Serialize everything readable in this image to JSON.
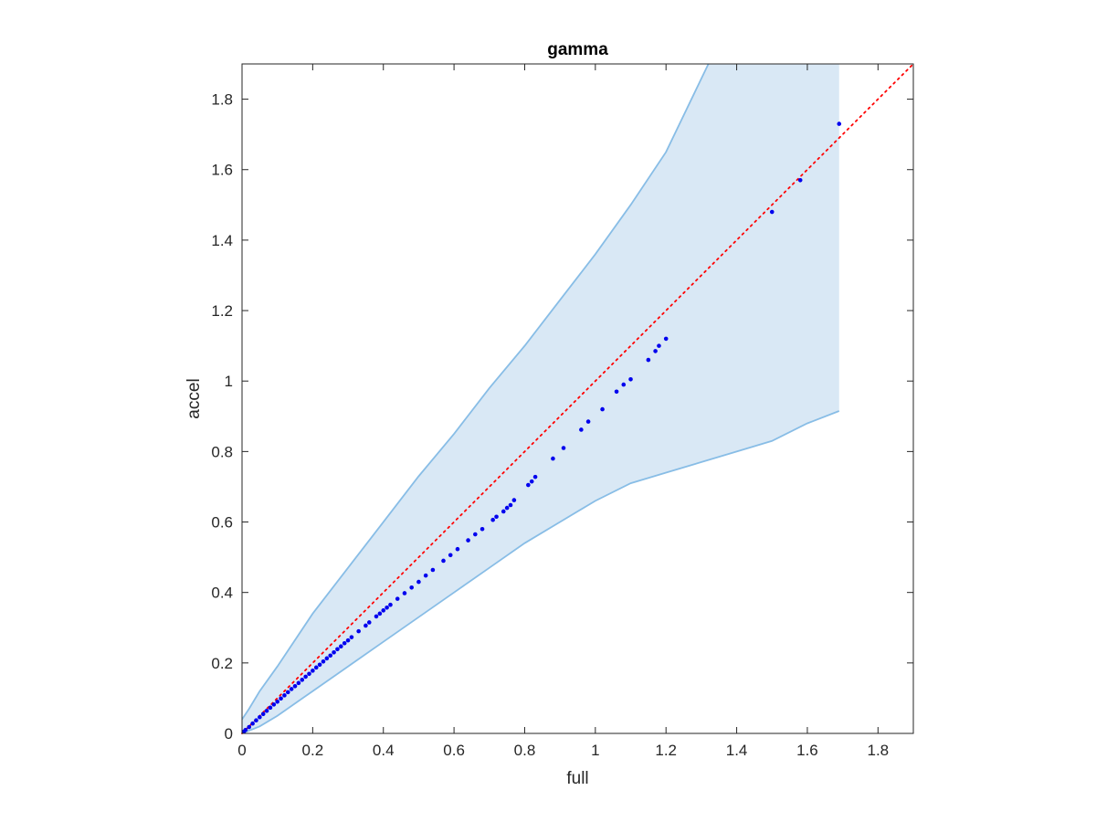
{
  "chart_data": {
    "type": "scatter",
    "title": "gamma",
    "xlabel": "full",
    "ylabel": "accel",
    "xlim": [
      0,
      1.9
    ],
    "ylim": [
      0,
      1.9
    ],
    "xticks": [
      0,
      0.2,
      0.4,
      0.6,
      0.8,
      1,
      1.2,
      1.4,
      1.6,
      1.8
    ],
    "yticks": [
      0,
      0.2,
      0.4,
      0.6,
      0.8,
      1,
      1.2,
      1.4,
      1.6,
      1.8
    ],
    "xtick_labels": [
      "0",
      "0.2",
      "0.4",
      "0.6",
      "0.8",
      "1",
      "1.2",
      "1.4",
      "1.6",
      "1.8"
    ],
    "ytick_labels": [
      "0",
      "0.2",
      "0.4",
      "0.6",
      "0.8",
      "1",
      "1.2",
      "1.4",
      "1.6",
      "1.8"
    ],
    "grid": false,
    "box": true,
    "colors": {
      "band_fill": "#d9e8f5",
      "band_edge": "#88bde6",
      "points": "#0000ee",
      "reference": "#ff0000",
      "axes": "#262626"
    },
    "band": {
      "upper": [
        [
          0,
          0.04
        ],
        [
          0.02,
          0.07
        ],
        [
          0.05,
          0.12
        ],
        [
          0.1,
          0.19
        ],
        [
          0.2,
          0.34
        ],
        [
          0.3,
          0.47
        ],
        [
          0.4,
          0.6
        ],
        [
          0.5,
          0.73
        ],
        [
          0.6,
          0.85
        ],
        [
          0.7,
          0.98
        ],
        [
          0.8,
          1.1
        ],
        [
          0.9,
          1.23
        ],
        [
          1.0,
          1.36
        ],
        [
          1.1,
          1.5
        ],
        [
          1.2,
          1.65
        ],
        [
          1.32,
          1.9
        ],
        [
          1.69,
          1.9
        ]
      ],
      "lower": [
        [
          0,
          0
        ],
        [
          0.05,
          0.02
        ],
        [
          0.1,
          0.05
        ],
        [
          0.2,
          0.12
        ],
        [
          0.3,
          0.19
        ],
        [
          0.4,
          0.26
        ],
        [
          0.5,
          0.33
        ],
        [
          0.6,
          0.4
        ],
        [
          0.7,
          0.47
        ],
        [
          0.8,
          0.54
        ],
        [
          0.9,
          0.6
        ],
        [
          1.0,
          0.66
        ],
        [
          1.1,
          0.71
        ],
        [
          1.2,
          0.74
        ],
        [
          1.4,
          0.8
        ],
        [
          1.5,
          0.83
        ],
        [
          1.6,
          0.88
        ],
        [
          1.69,
          0.915
        ]
      ]
    },
    "reference_line": [
      [
        0,
        0
      ],
      [
        1.9,
        1.9
      ]
    ],
    "points": [
      [
        0.005,
        0.005
      ],
      [
        0.01,
        0.01
      ],
      [
        0.02,
        0.018
      ],
      [
        0.03,
        0.028
      ],
      [
        0.04,
        0.037
      ],
      [
        0.05,
        0.046
      ],
      [
        0.06,
        0.055
      ],
      [
        0.07,
        0.064
      ],
      [
        0.08,
        0.073
      ],
      [
        0.09,
        0.082
      ],
      [
        0.1,
        0.09
      ],
      [
        0.11,
        0.099
      ],
      [
        0.12,
        0.108
      ],
      [
        0.13,
        0.117
      ],
      [
        0.14,
        0.126
      ],
      [
        0.15,
        0.134
      ],
      [
        0.16,
        0.143
      ],
      [
        0.17,
        0.152
      ],
      [
        0.18,
        0.161
      ],
      [
        0.19,
        0.169
      ],
      [
        0.2,
        0.178
      ],
      [
        0.21,
        0.187
      ],
      [
        0.22,
        0.195
      ],
      [
        0.23,
        0.204
      ],
      [
        0.24,
        0.213
      ],
      [
        0.25,
        0.221
      ],
      [
        0.26,
        0.23
      ],
      [
        0.27,
        0.239
      ],
      [
        0.28,
        0.247
      ],
      [
        0.29,
        0.256
      ],
      [
        0.3,
        0.264
      ],
      [
        0.31,
        0.273
      ],
      [
        0.33,
        0.29
      ],
      [
        0.35,
        0.306
      ],
      [
        0.36,
        0.315
      ],
      [
        0.38,
        0.332
      ],
      [
        0.39,
        0.34
      ],
      [
        0.4,
        0.349
      ],
      [
        0.41,
        0.357
      ],
      [
        0.42,
        0.365
      ],
      [
        0.44,
        0.382
      ],
      [
        0.46,
        0.398
      ],
      [
        0.48,
        0.414
      ],
      [
        0.5,
        0.43
      ],
      [
        0.52,
        0.448
      ],
      [
        0.54,
        0.464
      ],
      [
        0.57,
        0.49
      ],
      [
        0.59,
        0.506
      ],
      [
        0.61,
        0.523
      ],
      [
        0.64,
        0.548
      ],
      [
        0.66,
        0.565
      ],
      [
        0.68,
        0.58
      ],
      [
        0.71,
        0.606
      ],
      [
        0.72,
        0.615
      ],
      [
        0.74,
        0.63
      ],
      [
        0.75,
        0.64
      ],
      [
        0.76,
        0.648
      ],
      [
        0.77,
        0.662
      ],
      [
        0.81,
        0.705
      ],
      [
        0.82,
        0.715
      ],
      [
        0.83,
        0.728
      ],
      [
        0.88,
        0.78
      ],
      [
        0.91,
        0.81
      ],
      [
        0.96,
        0.862
      ],
      [
        0.98,
        0.885
      ],
      [
        1.02,
        0.92
      ],
      [
        1.06,
        0.97
      ],
      [
        1.08,
        0.99
      ],
      [
        1.1,
        1.005
      ],
      [
        1.15,
        1.06
      ],
      [
        1.17,
        1.085
      ],
      [
        1.18,
        1.1
      ],
      [
        1.2,
        1.12
      ],
      [
        1.5,
        1.48
      ],
      [
        1.58,
        1.57
      ],
      [
        1.69,
        1.73
      ]
    ]
  }
}
